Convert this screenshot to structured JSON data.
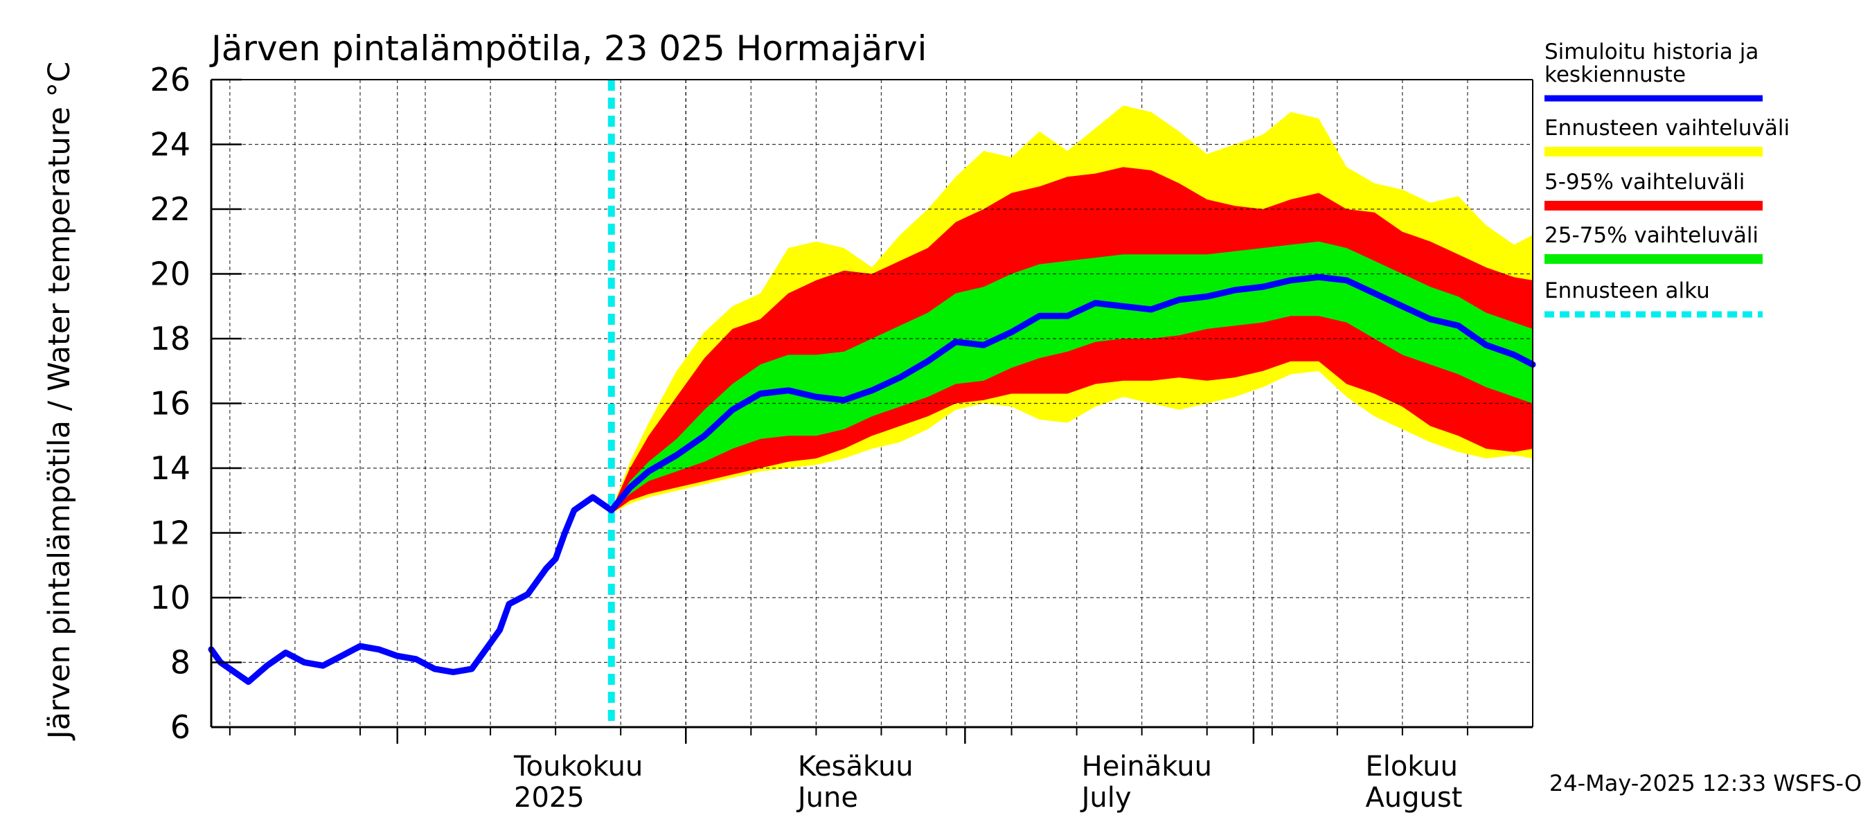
{
  "chart_data": {
    "type": "area",
    "title": "Järven pintalämpötila, 23 025 Hormajärvi",
    "ylabel": "Järven pintalämpötila / Water temperature °C",
    "xlabel": "",
    "ylim": [
      6,
      26
    ],
    "yticks": [
      6,
      8,
      10,
      12,
      14,
      16,
      18,
      20,
      22,
      24,
      26
    ],
    "xlim": [
      "2025-04-11",
      "2025-08-31"
    ],
    "month_labels": [
      {
        "date": "2025-05-01",
        "fi": "Toukokuu",
        "en": "2025"
      },
      {
        "date": "2025-06-01",
        "fi": "Kesäkuu",
        "en": "June"
      },
      {
        "date": "2025-07-01",
        "fi": "Heinäkuu",
        "en": "July"
      },
      {
        "date": "2025-08-01",
        "fi": "Elokuu",
        "en": "August"
      }
    ],
    "forecast_start": "2025-05-24",
    "grid": true,
    "legend_position": "right",
    "legend": [
      {
        "label": "Simuloitu historia ja keskiennuste",
        "color": "#0000ff"
      },
      {
        "label": "Ennusteen vaihteluväli",
        "color": "#ffff00"
      },
      {
        "label": "5-95% vaihteluväli",
        "color": "#ff0000"
      },
      {
        "label": "25-75% vaihteluväli",
        "color": "#00ee00"
      },
      {
        "label": "Ennusteen alku",
        "color": "#00eeee"
      }
    ],
    "timestamp": "24-May-2025 12:33 WSFS-O",
    "history": {
      "x": [
        "2025-04-11",
        "2025-04-12",
        "2025-04-14",
        "2025-04-15",
        "2025-04-17",
        "2025-04-19",
        "2025-04-21",
        "2025-04-23",
        "2025-04-25",
        "2025-04-27",
        "2025-04-29",
        "2025-05-01",
        "2025-05-03",
        "2025-05-05",
        "2025-05-07",
        "2025-05-09",
        "2025-05-11",
        "2025-05-12",
        "2025-05-13",
        "2025-05-15",
        "2025-05-17",
        "2025-05-18",
        "2025-05-19",
        "2025-05-20",
        "2025-05-22",
        "2025-05-23",
        "2025-05-24"
      ],
      "values": [
        8.4,
        8.0,
        7.6,
        7.4,
        7.9,
        8.3,
        8.0,
        7.9,
        8.2,
        8.5,
        8.4,
        8.2,
        8.1,
        7.8,
        7.7,
        7.8,
        8.6,
        9.0,
        9.8,
        10.1,
        10.9,
        11.2,
        12.0,
        12.7,
        13.1,
        12.9,
        12.7
      ]
    },
    "forecast": {
      "x": [
        "2025-05-24",
        "2025-05-26",
        "2025-05-28",
        "2025-05-31",
        "2025-06-03",
        "2025-06-06",
        "2025-06-09",
        "2025-06-12",
        "2025-06-15",
        "2025-06-18",
        "2025-06-21",
        "2025-06-24",
        "2025-06-27",
        "2025-06-30",
        "2025-07-03",
        "2025-07-06",
        "2025-07-09",
        "2025-07-12",
        "2025-07-15",
        "2025-07-18",
        "2025-07-21",
        "2025-07-24",
        "2025-07-27",
        "2025-07-30",
        "2025-08-02",
        "2025-08-05",
        "2025-08-08",
        "2025-08-11",
        "2025-08-14",
        "2025-08-17",
        "2025-08-20",
        "2025-08-23",
        "2025-08-26",
        "2025-08-29",
        "2025-08-31"
      ],
      "median": [
        12.7,
        13.4,
        13.9,
        14.4,
        15.0,
        15.8,
        16.3,
        16.4,
        16.2,
        16.1,
        16.4,
        16.8,
        17.3,
        17.9,
        17.8,
        18.2,
        18.7,
        18.7,
        19.1,
        19.0,
        18.9,
        19.2,
        19.3,
        19.5,
        19.6,
        19.8,
        19.9,
        19.8,
        19.4,
        19.0,
        18.6,
        18.4,
        17.8,
        17.5,
        17.2
      ],
      "p25": [
        12.7,
        13.2,
        13.6,
        13.9,
        14.2,
        14.6,
        14.9,
        15.0,
        15.0,
        15.2,
        15.6,
        15.9,
        16.2,
        16.6,
        16.7,
        17.1,
        17.4,
        17.6,
        17.9,
        18.0,
        18.0,
        18.1,
        18.3,
        18.4,
        18.5,
        18.7,
        18.7,
        18.5,
        18.0,
        17.5,
        17.2,
        16.9,
        16.5,
        16.2,
        16.0
      ],
      "p75": [
        12.7,
        13.6,
        14.2,
        14.9,
        15.8,
        16.6,
        17.2,
        17.5,
        17.5,
        17.6,
        18.0,
        18.4,
        18.8,
        19.4,
        19.6,
        20.0,
        20.3,
        20.4,
        20.5,
        20.6,
        20.6,
        20.6,
        20.6,
        20.7,
        20.8,
        20.9,
        21.0,
        20.8,
        20.4,
        20.0,
        19.6,
        19.3,
        18.8,
        18.5,
        18.3
      ],
      "p05": [
        12.6,
        13.0,
        13.2,
        13.4,
        13.6,
        13.8,
        14.0,
        14.2,
        14.3,
        14.6,
        15.0,
        15.3,
        15.6,
        16.0,
        16.1,
        16.3,
        16.3,
        16.3,
        16.6,
        16.7,
        16.7,
        16.8,
        16.7,
        16.8,
        17.0,
        17.3,
        17.3,
        16.6,
        16.3,
        15.9,
        15.3,
        15.0,
        14.6,
        14.5,
        14.6
      ],
      "p95": [
        12.7,
        14.0,
        15.0,
        16.2,
        17.4,
        18.3,
        18.6,
        19.4,
        19.8,
        20.1,
        20.0,
        20.4,
        20.8,
        21.6,
        22.0,
        22.5,
        22.7,
        23.0,
        23.1,
        23.3,
        23.2,
        22.8,
        22.3,
        22.1,
        22.0,
        22.3,
        22.5,
        22.0,
        21.9,
        21.3,
        21.0,
        20.6,
        20.2,
        19.9,
        19.8
      ],
      "min": [
        12.6,
        12.9,
        13.1,
        13.3,
        13.5,
        13.7,
        13.9,
        14.0,
        14.1,
        14.3,
        14.6,
        14.8,
        15.2,
        15.8,
        16.0,
        15.9,
        15.5,
        15.4,
        15.9,
        16.2,
        16.0,
        15.8,
        16.0,
        16.2,
        16.5,
        16.9,
        17.0,
        16.2,
        15.6,
        15.2,
        14.8,
        14.5,
        14.3,
        14.4,
        14.3
      ],
      "max": [
        12.7,
        14.2,
        15.4,
        17.0,
        18.2,
        19.0,
        19.4,
        20.8,
        21.0,
        20.8,
        20.2,
        21.2,
        22.0,
        23.0,
        23.8,
        23.6,
        24.4,
        23.8,
        24.5,
        25.2,
        25.0,
        24.4,
        23.7,
        24.0,
        24.3,
        25.0,
        24.8,
        23.3,
        22.8,
        22.6,
        22.2,
        22.4,
        21.5,
        20.9,
        21.2
      ]
    }
  }
}
